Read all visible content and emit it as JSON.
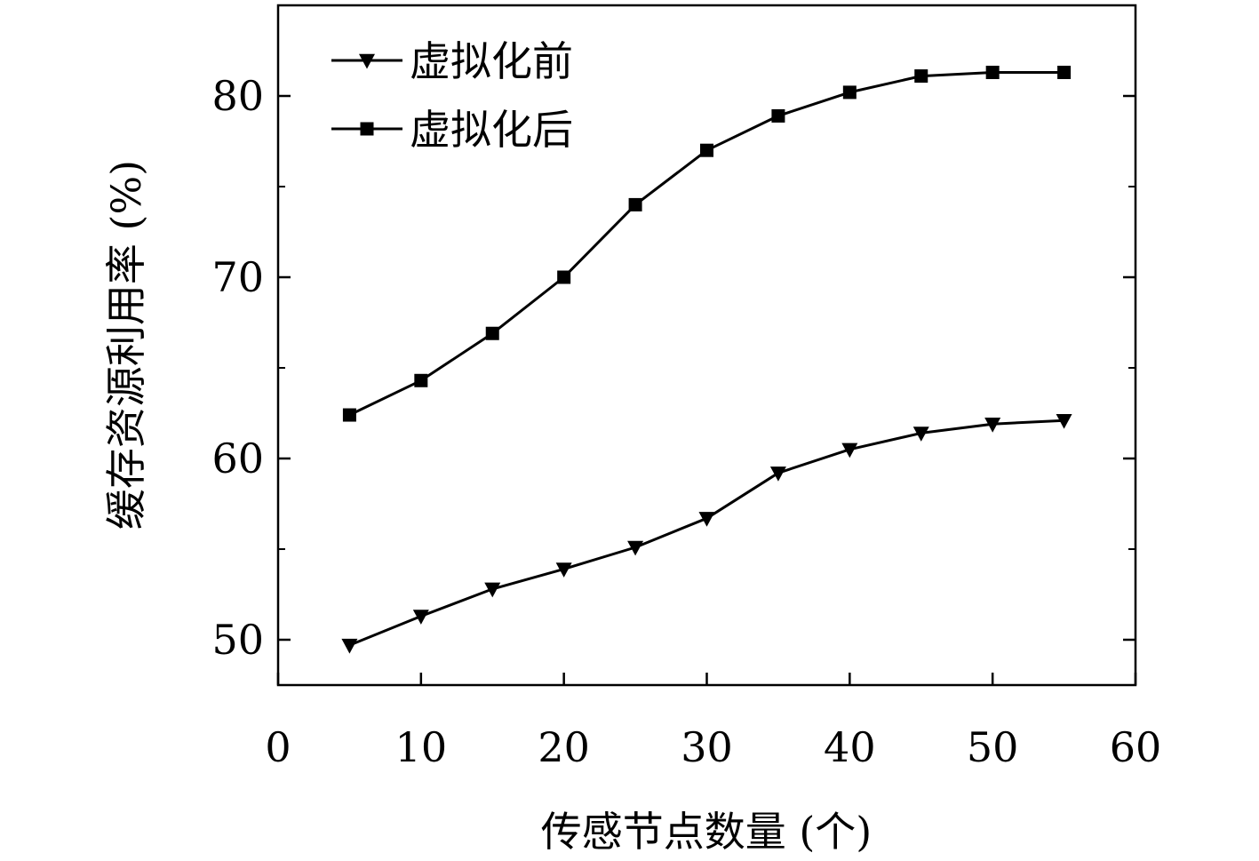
{
  "chart_data": {
    "type": "line",
    "title": "",
    "xlabel": "传感节点数量 (个)",
    "ylabel": "缓存资源利用率 (%)",
    "xlim": [
      0,
      60
    ],
    "ylim": [
      47.5,
      85
    ],
    "xticks": [
      0,
      10,
      20,
      30,
      40,
      50,
      60
    ],
    "yticks": [
      50,
      60,
      70,
      80
    ],
    "y_minor_step": 5,
    "grid": false,
    "legend_position": "top-left",
    "series": [
      {
        "name": "虚拟化前",
        "marker": "triangle-down",
        "x": [
          5,
          10,
          15,
          20,
          25,
          30,
          35,
          40,
          45,
          50,
          55
        ],
        "values": [
          49.7,
          51.3,
          52.8,
          53.9,
          55.1,
          56.7,
          59.2,
          60.5,
          61.4,
          61.9,
          62.1
        ]
      },
      {
        "name": "虚拟化后",
        "marker": "square",
        "x": [
          5,
          10,
          15,
          20,
          25,
          30,
          35,
          40,
          45,
          50,
          55
        ],
        "values": [
          62.4,
          64.3,
          66.9,
          70.0,
          74.0,
          77.0,
          78.9,
          80.2,
          81.1,
          81.3,
          81.3
        ]
      }
    ],
    "colors": {
      "line": "#000000",
      "background": "#ffffff"
    }
  }
}
